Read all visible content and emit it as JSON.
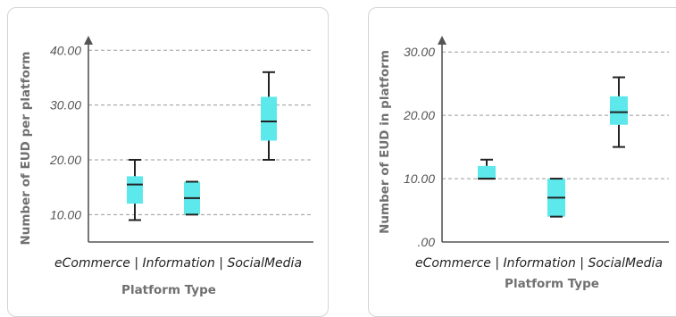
{
  "chart_data": [
    {
      "type": "boxplot",
      "title": "",
      "ylabel": "Number of EUD per platform",
      "xlabel": "Platform Type",
      "ylim": [
        5,
        42
      ],
      "yticks": [
        10,
        20,
        30,
        40
      ],
      "ytick_labels": [
        "10.00",
        "20.00",
        "30.00",
        "40.00"
      ],
      "grid": "horizontal-dashed",
      "box_color": "#5de8ec",
      "categories": [
        "eCommerce",
        "Information",
        "SocialMedia"
      ],
      "separator": "|",
      "boxes": [
        {
          "category": "eCommerce",
          "min": 9,
          "q1": 12,
          "median": 15.5,
          "q3": 17,
          "max": 20
        },
        {
          "category": "Information",
          "min": 10,
          "q1": 10,
          "median": 13,
          "q3": 16,
          "max": 16
        },
        {
          "category": "SocialMedia",
          "min": 20,
          "q1": 23.5,
          "median": 27,
          "q3": 31.5,
          "max": 36
        }
      ]
    },
    {
      "type": "boxplot",
      "title": "",
      "ylabel": "Number of EUD in platform",
      "xlabel": "Platform Type",
      "ylim": [
        0,
        32
      ],
      "yticks": [
        0,
        10,
        20,
        30
      ],
      "ytick_labels": [
        ".00",
        "10.00",
        "20.00",
        "30.00"
      ],
      "grid": "horizontal-dashed",
      "box_color": "#5de8ec",
      "categories": [
        "eCommerce",
        "Information",
        "SocialMedia"
      ],
      "separator": "|",
      "boxes": [
        {
          "category": "eCommerce",
          "min": 10,
          "q1": 10,
          "median": 10,
          "q3": 12,
          "max": 13
        },
        {
          "category": "Information",
          "min": 4,
          "q1": 4,
          "median": 7,
          "q3": 10,
          "max": 10
        },
        {
          "category": "SocialMedia",
          "min": 15,
          "q1": 18.5,
          "median": 20.5,
          "q3": 23,
          "max": 26
        }
      ]
    }
  ]
}
